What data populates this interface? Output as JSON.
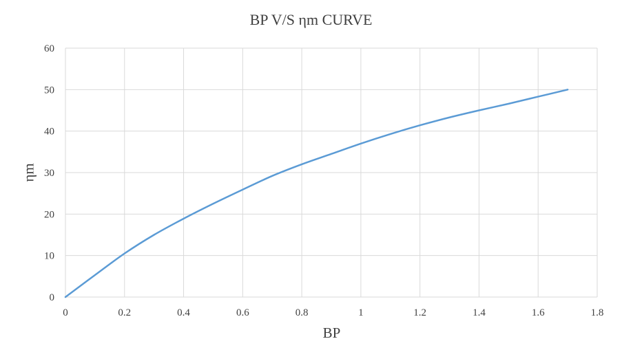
{
  "chart_data": {
    "type": "line",
    "title": "BP V/S ηm CURVE",
    "xlabel": "BP",
    "ylabel": "ηm",
    "xlim": [
      0,
      1.8
    ],
    "ylim": [
      0,
      60
    ],
    "xticks": [
      "0",
      "0.2",
      "0.4",
      "0.6",
      "0.8",
      "1",
      "1.2",
      "1.4",
      "1.6",
      "1.8"
    ],
    "yticks": [
      "0",
      "10",
      "20",
      "30",
      "40",
      "50",
      "60"
    ],
    "grid": true,
    "legend": "none",
    "series": [
      {
        "color": "#5b9bd5",
        "x": [
          0,
          0.1,
          0.2,
          0.3,
          0.4,
          0.5,
          0.6,
          0.7,
          0.8,
          0.9,
          1.0,
          1.1,
          1.2,
          1.3,
          1.4,
          1.5,
          1.6,
          1.7
        ],
        "y": [
          0,
          5.3,
          10.5,
          15,
          18.9,
          22.5,
          25.9,
          29.2,
          32,
          34.5,
          37,
          39.3,
          41.4,
          43.3,
          45,
          46.6,
          48.3,
          50
        ]
      }
    ]
  }
}
